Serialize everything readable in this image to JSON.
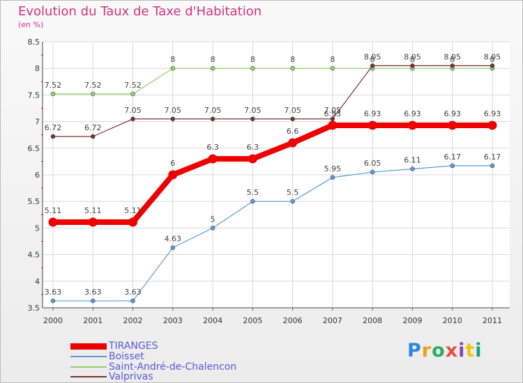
{
  "chart_data": {
    "type": "line",
    "title": "Evolution du Taux de Taxe d'Habitation",
    "subtitle": "(en %)",
    "xlabel": "",
    "ylabel": "",
    "x": [
      "2000",
      "2001",
      "2002",
      "2003",
      "2004",
      "2005",
      "2006",
      "2007",
      "2008",
      "2009",
      "2010",
      "2011"
    ],
    "ylim": [
      3.5,
      8.5
    ],
    "yticks": [
      "3.5",
      "4",
      "4.5",
      "5",
      "5.5",
      "6",
      "6.5",
      "7",
      "7.5",
      "8",
      "8.5"
    ],
    "grid": true,
    "legend_position": "bottom-left",
    "series": [
      {
        "name": "TIRANGES",
        "color": "#ee0000",
        "values": [
          5.11,
          5.11,
          5.11,
          6,
          6.3,
          6.3,
          6.6,
          6.93,
          6.93,
          6.93,
          6.93,
          6.93
        ],
        "labels": [
          "5.11",
          "5.11",
          "5.11",
          "6",
          "6.3",
          "6.3",
          "6.6",
          "6.93",
          "6.93",
          "6.93",
          "6.93",
          "6.93"
        ]
      },
      {
        "name": "Boisset",
        "color": "#5b9bd5",
        "values": [
          3.63,
          3.63,
          3.63,
          4.63,
          5,
          5.5,
          5.5,
          5.95,
          6.05,
          6.11,
          6.17,
          6.17
        ],
        "labels": [
          "3.63",
          "3.63",
          "3.63",
          "4.63",
          "5",
          "5.5",
          "5.5",
          "5.95",
          "6.05",
          "6.11",
          "6.17",
          "6.17"
        ]
      },
      {
        "name": "Saint-André-de-Chalencon",
        "color": "#8fd16a",
        "values": [
          7.52,
          7.52,
          7.52,
          8,
          8,
          8,
          8,
          8,
          8,
          8,
          8,
          8
        ],
        "labels": [
          "7.52",
          "7.52",
          "7.52",
          "8",
          "8",
          "8",
          "8",
          "8",
          "8",
          "8",
          "8",
          "8"
        ]
      },
      {
        "name": "Valprivas",
        "color": "#7a3030",
        "values": [
          6.72,
          6.72,
          7.05,
          7.05,
          7.05,
          7.05,
          7.05,
          7.05,
          8.05,
          8.05,
          8.05,
          8.05
        ],
        "labels": [
          "6.72",
          "6.72",
          "7.05",
          "7.05",
          "7.05",
          "7.05",
          "7.05",
          "7.05",
          "8.05",
          "8.05",
          "8.05",
          "8.05"
        ]
      }
    ]
  },
  "logo": {
    "letters": [
      "P",
      "r",
      "o",
      "x",
      "i",
      "t",
      "i"
    ],
    "colors": [
      "#2e86de",
      "#f39c12",
      "#27ae60",
      "#e74c3c",
      "#8e44ad",
      "#f1c40f",
      "#16a085"
    ]
  }
}
